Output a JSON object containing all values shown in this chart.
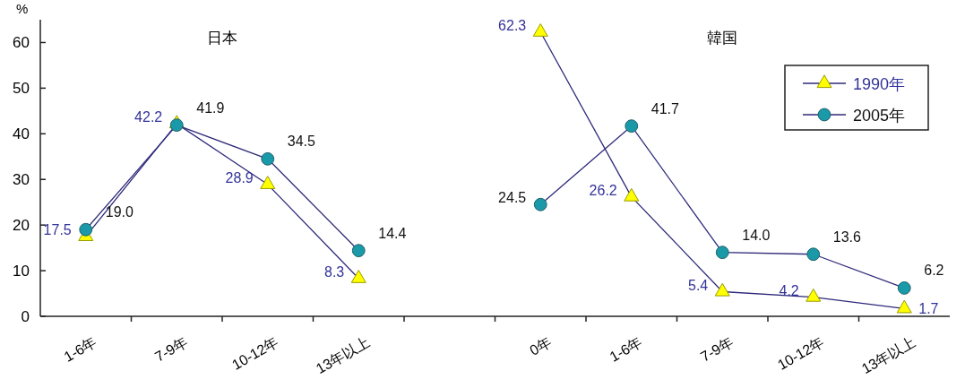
{
  "chart_data": {
    "type": "line",
    "ylabel": "%",
    "categories": [
      "1-6年",
      "7-9年",
      "10-12年",
      "13年以上",
      null,
      "0年",
      "1-6年",
      "7-9年",
      "10-12年",
      "13年以上"
    ],
    "series": [
      {
        "name": "1990年",
        "color": "#ffff00",
        "marker": "triangle",
        "values": [
          17.5,
          42.2,
          28.9,
          8.3,
          null,
          62.3,
          26.2,
          5.4,
          4.2,
          1.7
        ],
        "value_labels": [
          "17.5",
          "42.2",
          "28.9",
          "8.3",
          null,
          "62.3",
          "26.2",
          "5.4",
          "4.2",
          "1.7"
        ]
      },
      {
        "name": "2005年",
        "color": "#1a9aa8",
        "marker": "circle",
        "values": [
          19.0,
          41.9,
          34.5,
          14.4,
          null,
          24.5,
          41.7,
          14.0,
          13.6,
          6.2
        ],
        "value_labels": [
          "19.0",
          "41.9",
          "34.5",
          "14.4",
          null,
          "24.5",
          "41.7",
          "14.0",
          "13.6",
          "6.2"
        ]
      }
    ],
    "ylim": [
      0,
      65
    ],
    "yticks": [
      0,
      10,
      20,
      30,
      40,
      50,
      60
    ],
    "legend": "top right",
    "grid": false,
    "annotations": [
      "日本",
      "韓国"
    ]
  }
}
